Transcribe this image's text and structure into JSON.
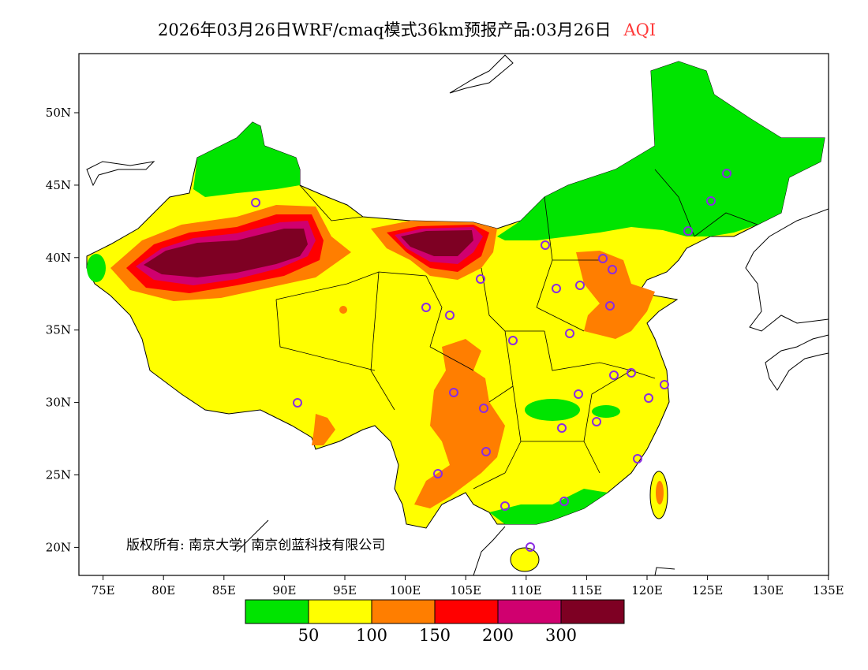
{
  "title": {
    "text": "2026年03月26日WRF/cmaq模式36km预报产品:03月26日",
    "variable": "AQI"
  },
  "map": {
    "lon_labels": [
      "75E",
      "80E",
      "85E",
      "90E",
      "95E",
      "100E",
      "105E",
      "110E",
      "115E",
      "120E",
      "125E",
      "130E",
      "135E"
    ],
    "lat_labels": [
      "50N",
      "45N",
      "40N",
      "35N",
      "30N",
      "25N",
      "20N"
    ],
    "copyright": "版权所有: 南京大学| 南京创蓝科技有限公司"
  },
  "legend": {
    "colors": [
      "#00e400",
      "#ffff00",
      "#ff7e00",
      "#ff0000",
      "#d0006f",
      "#7e0023"
    ],
    "thresholds": [
      "50",
      "100",
      "150",
      "200",
      "300"
    ]
  }
}
